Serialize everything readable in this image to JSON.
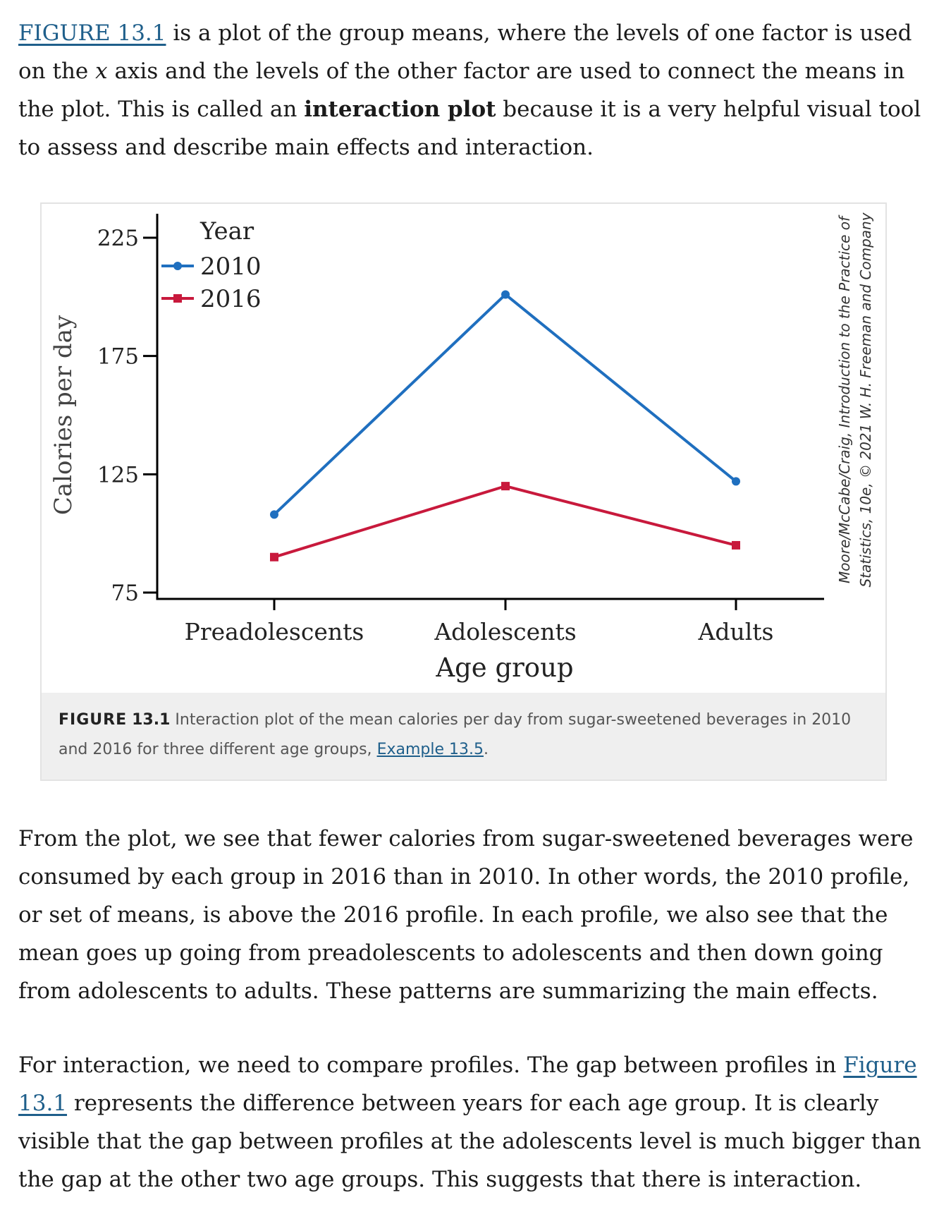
{
  "para1": {
    "link": "FIGURE 13.1",
    "t1": " is a plot of the group means, where the levels of one factor is used on the ",
    "x": "x",
    "t2": " axis and the levels of the other factor are used to connect the means in the plot. This is called an ",
    "bold": "interaction plot",
    "t3": " because it is a very helpful visual tool to assess and describe main effects and interaction."
  },
  "figure": {
    "credit_line1": "Moore/McCabe/Craig, Introduction to the Practice of",
    "credit_line2": "Statistics, 10e, © 2021 W. H. Freeman and Company",
    "caption": {
      "label": "FIGURE",
      "number": "13.1",
      "text": " Interaction plot of the mean calories per day from sugar-sweetened beverages in 2010 and 2016 for three different age groups, ",
      "link": "Example 13.5",
      "end": "."
    }
  },
  "chart_data": {
    "type": "line",
    "categories": [
      "Preadolescents",
      "Adolescents",
      "Adults"
    ],
    "series": [
      {
        "name": "2010",
        "values": [
          108,
          201,
          122
        ],
        "color": "#1f6fbf",
        "marker": "circle"
      },
      {
        "name": "2016",
        "values": [
          90,
          120,
          95
        ],
        "color": "#c8193c",
        "marker": "square"
      }
    ],
    "xlabel": "Age group",
    "ylabel": "Calories per day",
    "ylim": [
      75,
      225
    ],
    "yticks": [
      75,
      125,
      175,
      225
    ],
    "legend_title": "Year",
    "legend_position": "top-left",
    "grid": false
  },
  "para2": {
    "text": "From the plot, we see that fewer calories from sugar-sweetened beverages were consumed by each group in 2016 than in 2010. In other words, the 2010 profile, or set of means, is above the 2016 profile. In each profile, we also see that the mean goes up going from preadolescents to adolescents and then down going from adolescents to adults. These patterns are summarizing the main effects."
  },
  "para3": {
    "t1": "For interaction, we need to compare profiles. The gap between profiles in ",
    "link": "Figure 13.1",
    "t2": " represents the difference between years for each age group. It is clearly visible that the gap between profiles at the adolescents level is much bigger than the gap at the other two age groups. This suggests that there is interaction."
  }
}
